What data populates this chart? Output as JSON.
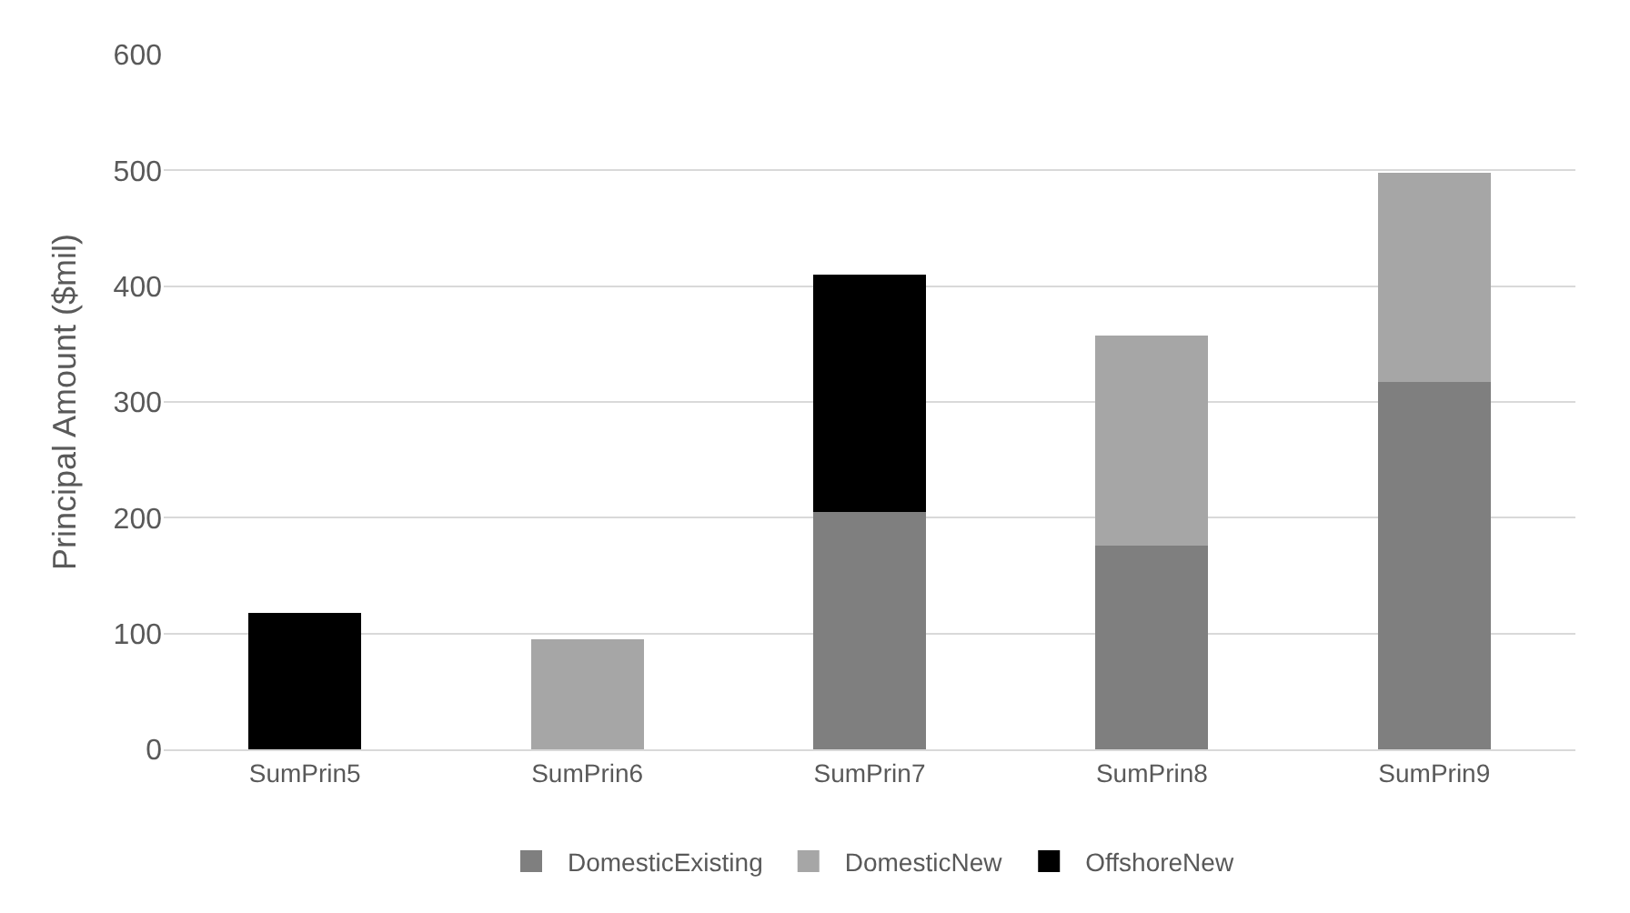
{
  "chart_data": {
    "type": "bar",
    "stacked": true,
    "ylabel": "Principal Amount ($mil)",
    "categories": [
      "SumPrin5",
      "SumPrin6",
      "SumPrin7",
      "SumPrin8",
      "SumPrin9"
    ],
    "series": [
      {
        "name": "DomesticExisting",
        "color": "#7f7f7f",
        "values": [
          null,
          null,
          205,
          176,
          317
        ]
      },
      {
        "name": "DomesticNew",
        "color": "#a6a6a6",
        "values": [
          null,
          95,
          null,
          181,
          181
        ]
      },
      {
        "name": "OffshoreNew",
        "color": "#000000",
        "values": [
          118,
          null,
          205,
          null,
          null
        ]
      }
    ],
    "ylim": [
      0,
      600
    ],
    "yticks": [
      0,
      100,
      200,
      300,
      400,
      500,
      600
    ],
    "grid": "y",
    "legend": "bottom"
  }
}
